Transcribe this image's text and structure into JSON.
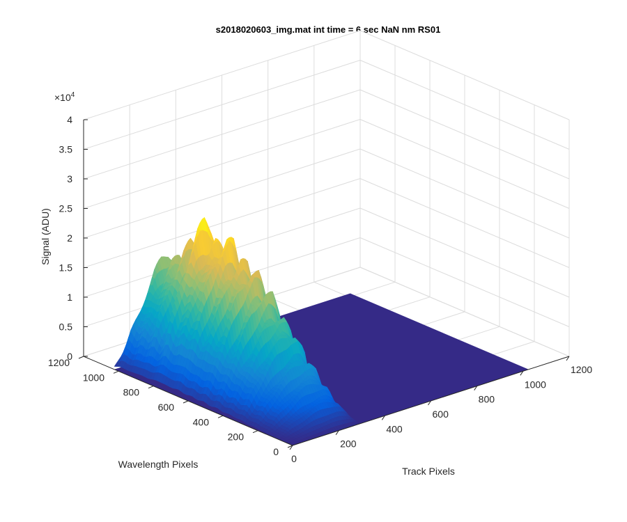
{
  "chart_data": {
    "type": "surface",
    "title": "s2018020603_img.mat int time = 6 sec  NaN nm RS01",
    "xlabel": "Track Pixels",
    "ylabel": "Wavelength Pixels",
    "zlabel": "Signal (ADU)",
    "z_exponent_label": "×10",
    "z_exponent": "4",
    "xlim": [
      0,
      1200
    ],
    "ylim": [
      0,
      1200
    ],
    "zlim": [
      0,
      40000
    ],
    "x_ticks": [
      "0",
      "200",
      "400",
      "600",
      "800",
      "1000",
      "1200"
    ],
    "y_ticks": [
      "0",
      "200",
      "400",
      "600",
      "800",
      "1000",
      "1200"
    ],
    "z_ticks": [
      "0",
      "0.5",
      "1",
      "1.5",
      "2",
      "2.5",
      "3",
      "3.5",
      "4"
    ],
    "grid": true,
    "surface": {
      "track_range_active": [
        0,
        300
      ],
      "wavelength_range": [
        0,
        1024
      ],
      "track_extent": [
        0,
        1024
      ],
      "wavelength_profile": [
        [
          0,
          0
        ],
        [
          40,
          1200
        ],
        [
          80,
          2500
        ],
        [
          120,
          4000
        ],
        [
          160,
          5500
        ],
        [
          200,
          7000
        ],
        [
          240,
          8500
        ],
        [
          280,
          10000
        ],
        [
          320,
          12000
        ],
        [
          360,
          13500
        ],
        [
          400,
          14500
        ],
        [
          440,
          16000
        ],
        [
          480,
          17500
        ],
        [
          520,
          19000
        ],
        [
          560,
          18500
        ],
        [
          600,
          21000
        ],
        [
          640,
          20500
        ],
        [
          680,
          23500
        ],
        [
          720,
          21000
        ],
        [
          760,
          24000
        ],
        [
          800,
          21500
        ],
        [
          840,
          18500
        ],
        [
          880,
          19000
        ],
        [
          920,
          16500
        ],
        [
          960,
          17500
        ],
        [
          1000,
          15000
        ],
        [
          1024,
          11000
        ]
      ],
      "track_profile": [
        [
          0,
          0.05
        ],
        [
          30,
          0.2
        ],
        [
          60,
          0.4
        ],
        [
          90,
          0.55
        ],
        [
          120,
          0.7
        ],
        [
          150,
          0.85
        ],
        [
          180,
          0.95
        ],
        [
          210,
          1.0
        ],
        [
          240,
          0.95
        ],
        [
          270,
          0.75
        ],
        [
          295,
          0.3
        ],
        [
          300,
          0.0
        ]
      ],
      "colormap": [
        "#352a87",
        "#0363e1",
        "#1485d4",
        "#06a7c6",
        "#38b99e",
        "#92bf73",
        "#d9ba56",
        "#fcce2e",
        "#f9fb0e"
      ]
    }
  }
}
